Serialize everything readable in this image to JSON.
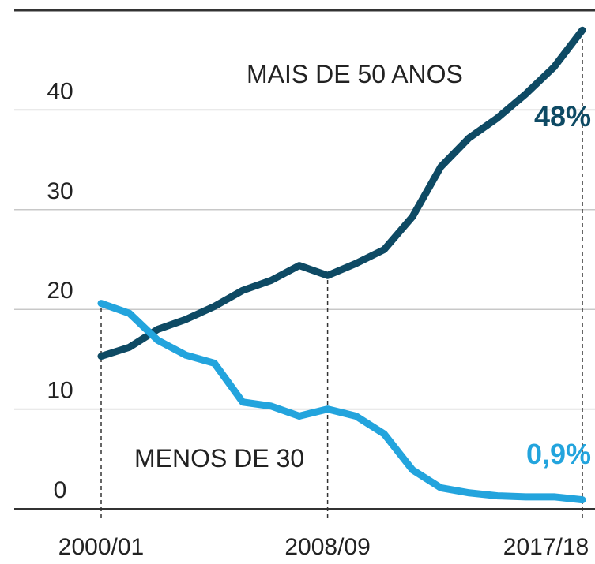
{
  "chart_data": {
    "type": "line",
    "categories": [
      "2000/01",
      null,
      null,
      null,
      null,
      null,
      null,
      null,
      "2008/09",
      null,
      null,
      null,
      null,
      null,
      null,
      null,
      null,
      "2017/18"
    ],
    "series": [
      {
        "name": "MAIS DE 50 ANOS",
        "color": "#0e4a64",
        "values": [
          15.3,
          16.2,
          18.0,
          19.0,
          20.3,
          21.9,
          22.9,
          24.4,
          23.4,
          24.6,
          26.0,
          29.3,
          34.3,
          37.2,
          39.2,
          41.6,
          44.3,
          48
        ],
        "value_labels": [
          null,
          null,
          null,
          null,
          null,
          null,
          null,
          null,
          null,
          null,
          null,
          null,
          null,
          null,
          null,
          null,
          null,
          "48%"
        ]
      },
      {
        "name": "MENOS DE  30",
        "color": "#23a4dd",
        "values": [
          20.6,
          19.6,
          16.9,
          15.4,
          14.6,
          10.7,
          10.3,
          9.3,
          10.0,
          9.3,
          7.5,
          3.9,
          2.1,
          1.6,
          1.3,
          1.2,
          1.2,
          0.9
        ],
        "value_labels": [
          null,
          null,
          null,
          null,
          null,
          null,
          null,
          null,
          null,
          null,
          null,
          null,
          null,
          null,
          null,
          null,
          null,
          "0,9%"
        ]
      }
    ],
    "ylim": [
      0,
      50
    ],
    "yticks": [
      0,
      10,
      20,
      30,
      40
    ],
    "grid": true
  }
}
